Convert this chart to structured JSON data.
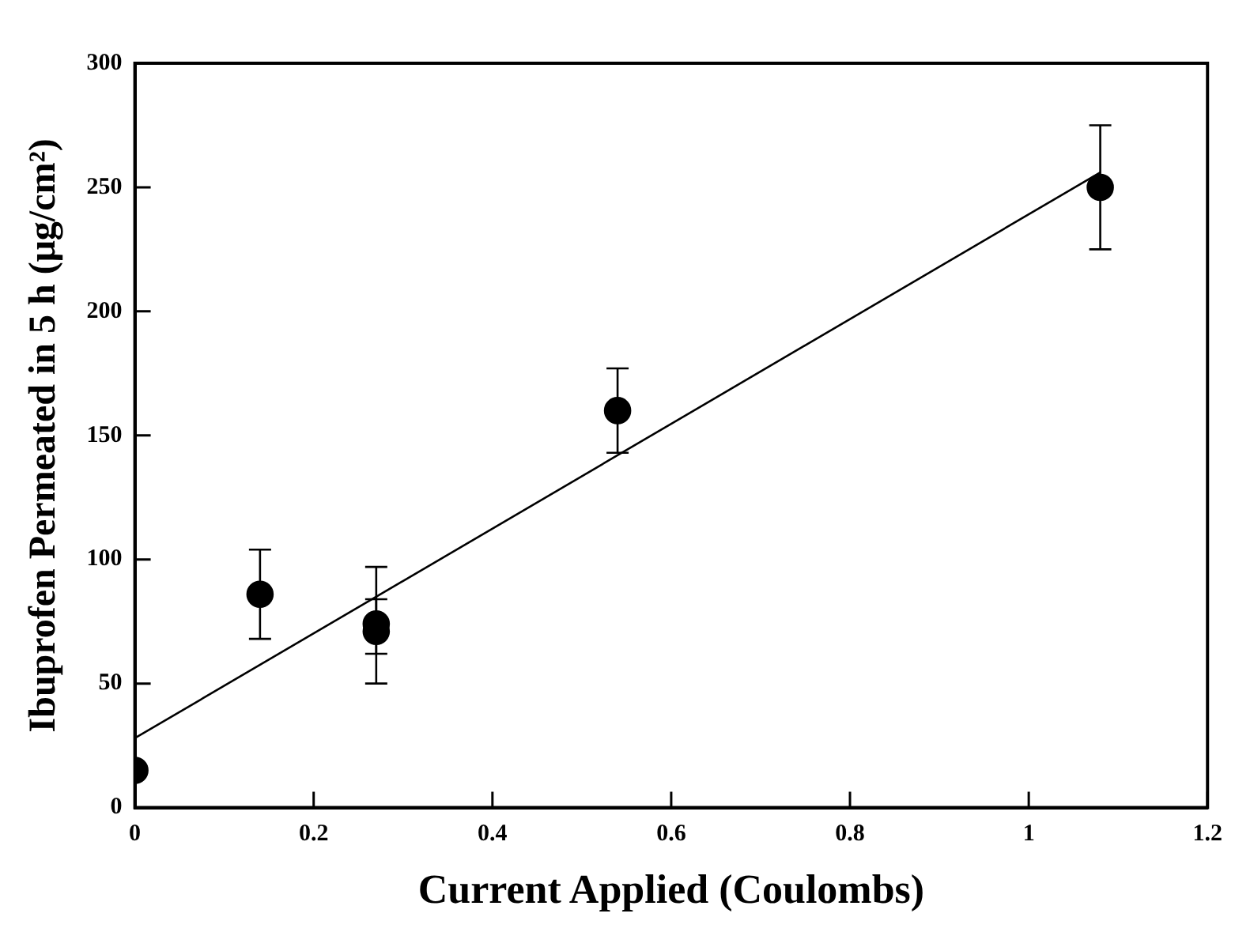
{
  "chart_data": {
    "type": "scatter",
    "xlabel": "Current Applied (Coulombs)",
    "ylabel": "Ibuprofen Permeated in 5 h (μg/cm²)",
    "xlim": [
      0,
      1.2
    ],
    "xticks": [
      0,
      0.2,
      0.4,
      0.6,
      0.8,
      1,
      1.2
    ],
    "ylim": [
      0,
      300
    ],
    "yticks": [
      0,
      50,
      100,
      150,
      200,
      250,
      300
    ],
    "grid": false,
    "legend": false,
    "marker": "circle",
    "series": [
      {
        "type": "scatter",
        "color": "#000000",
        "x": [
          0,
          0.14,
          0.27,
          0.27,
          0.54,
          1.08
        ],
        "values": [
          15,
          86,
          74,
          71,
          160,
          250
        ],
        "errors": [
          null,
          [
            68,
            104
          ],
          [
            50,
            97
          ],
          [
            62,
            84
          ],
          [
            143,
            177
          ],
          [
            225,
            275
          ]
        ]
      },
      {
        "type": "line",
        "color": "#000000",
        "marker": "none",
        "line_style": "solid",
        "x": [
          0,
          1.08
        ],
        "values": [
          28,
          256
        ]
      }
    ]
  }
}
